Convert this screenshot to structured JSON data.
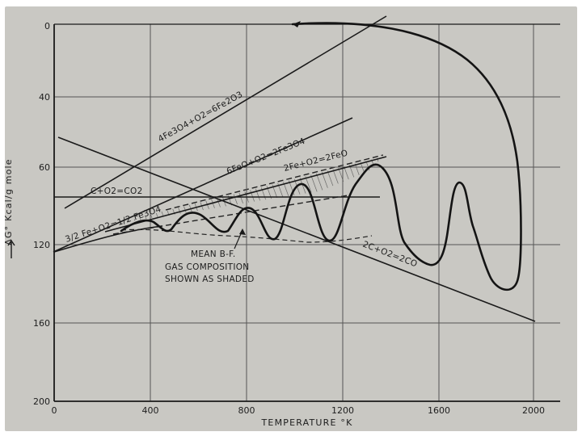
{
  "chart_data": {
    "type": "line",
    "xlabel": "TEMPERATURE °K",
    "ylabel": "ΔG° Kcal/g mole",
    "xlim": [
      0,
      2100
    ],
    "ylim": [
      0,
      200
    ],
    "x_ticks": [
      "0",
      "400",
      "800",
      "1200",
      "1600",
      "2000"
    ],
    "y_ticks": [
      "0",
      "40",
      "60",
      "120",
      "160",
      "200"
    ],
    "reaction_labels": {
      "fe3o4_fe2o3": "4Fe3O4+O2=6Fe2O3",
      "feo_fe3o4": "6FeO+O2=2Fe3O4",
      "fe_feo": "2Fe+O2=2FeO",
      "c_co2": "C+O2=CO2",
      "fe_fe3o4": "3/2 Fe+O2=1/2 Fe3O4",
      "c_co": "2C+O2=2CO"
    },
    "annotation": [
      "MEAN B-F.",
      "GAS COMPOSITION",
      "SHOWN AS SHADED"
    ]
  }
}
